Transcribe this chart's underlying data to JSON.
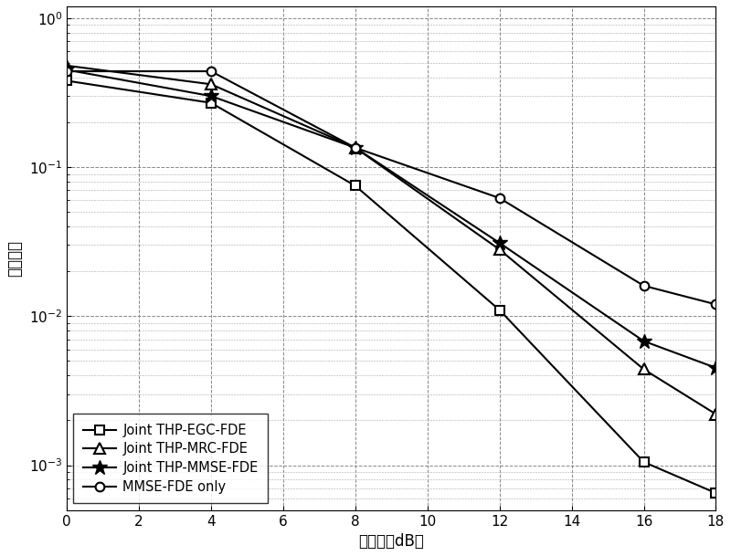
{
  "x": [
    0,
    4,
    8,
    12,
    16,
    18
  ],
  "egc": [
    0.38,
    0.27,
    0.075,
    0.011,
    0.00105,
    0.00065
  ],
  "mrc": [
    0.48,
    0.36,
    0.135,
    0.028,
    0.0044,
    0.0022
  ],
  "mmse": [
    0.45,
    0.3,
    0.135,
    0.031,
    0.0068,
    0.0045
  ],
  "mmse_only": [
    0.44,
    0.44,
    0.135,
    0.062,
    0.016,
    0.012
  ],
  "line_color": "#000000",
  "xlabel": "信噪比（dB）",
  "ylabel": "误比特率",
  "legend_labels": [
    "Joint THP-EGC-FDE",
    "Joint THP-MRC-FDE",
    "Joint THP-MMSE-FDE",
    "MMSE-FDE only"
  ],
  "xlim": [
    0,
    18
  ],
  "ylim": [
    0.0005,
    1.2
  ],
  "xticks": [
    0,
    2,
    4,
    6,
    8,
    10,
    12,
    14,
    16,
    18
  ],
  "figsize": [
    8.0,
    6.09
  ],
  "dpi": 100
}
